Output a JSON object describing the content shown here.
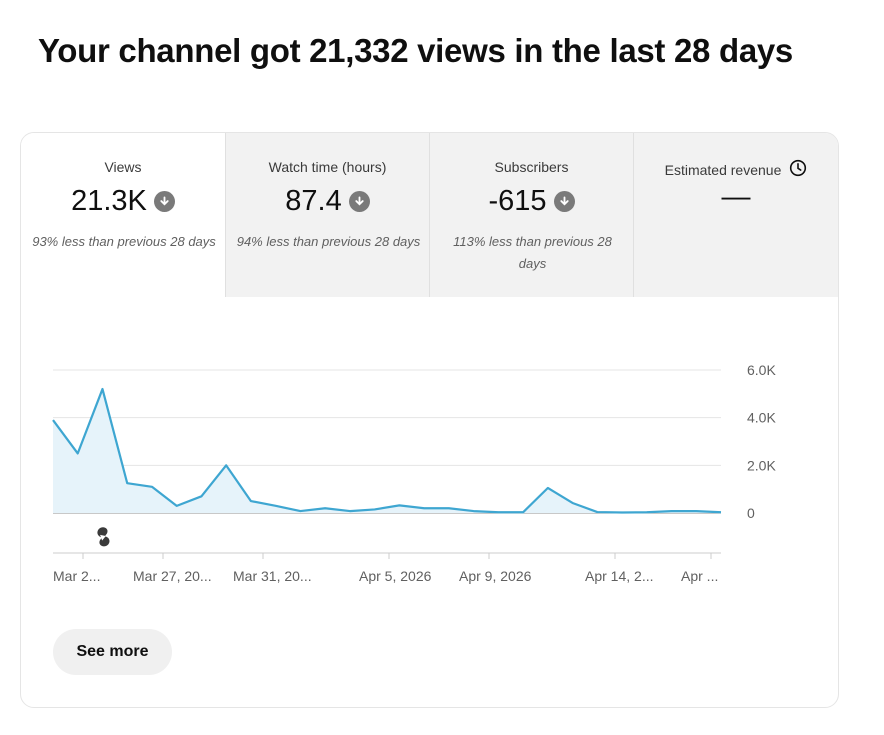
{
  "headline": "Your channel got 21,332 views in the last 28 days",
  "tabs": [
    {
      "label": "Views",
      "value": "21.3K",
      "trend": "down",
      "sub": "93% less than previous 28 days"
    },
    {
      "label": "Watch time (hours)",
      "value": "87.4",
      "trend": "down",
      "sub": "94% less than previous 28 days"
    },
    {
      "label": "Subscribers",
      "value": "-615",
      "trend": "down",
      "sub": "113% less than previous 28 days"
    },
    {
      "label": "Estimated revenue",
      "value": "—",
      "icon": "clock-icon"
    }
  ],
  "see_more_label": "See more",
  "colors": {
    "line": "#3ea6d1",
    "fill": "#e6f3fa",
    "down_icon": "#7a7a7a"
  },
  "chart_data": {
    "type": "area",
    "y_ticks": [
      "6.0K",
      "4.0K",
      "2.0K",
      "0"
    ],
    "ylim": [
      0,
      6000
    ],
    "x_tick_labels": [
      "Mar 2...",
      "Mar 27, 20...",
      "Mar 31, 20...",
      "Apr 5, 2026",
      "Apr 9, 2026",
      "Apr 14, 2...",
      "Apr ..."
    ],
    "x": [
      "d1",
      "d2",
      "d3",
      "d4",
      "d5",
      "d6",
      "d7",
      "d8",
      "d9",
      "d10",
      "d11",
      "d12",
      "d13",
      "d14",
      "d15",
      "d16",
      "d17",
      "d18",
      "d19",
      "d20",
      "d21",
      "d22",
      "d23",
      "d24",
      "d25",
      "d26",
      "d27",
      "d28"
    ],
    "values": [
      3900,
      2500,
      5200,
      1250,
      1100,
      300,
      700,
      2000,
      500,
      300,
      80,
      200,
      80,
      150,
      320,
      200,
      200,
      80,
      30,
      30,
      1050,
      420,
      40,
      20,
      30,
      80,
      80,
      30
    ],
    "annotation_icon": "shorts-icon",
    "grid": true
  }
}
